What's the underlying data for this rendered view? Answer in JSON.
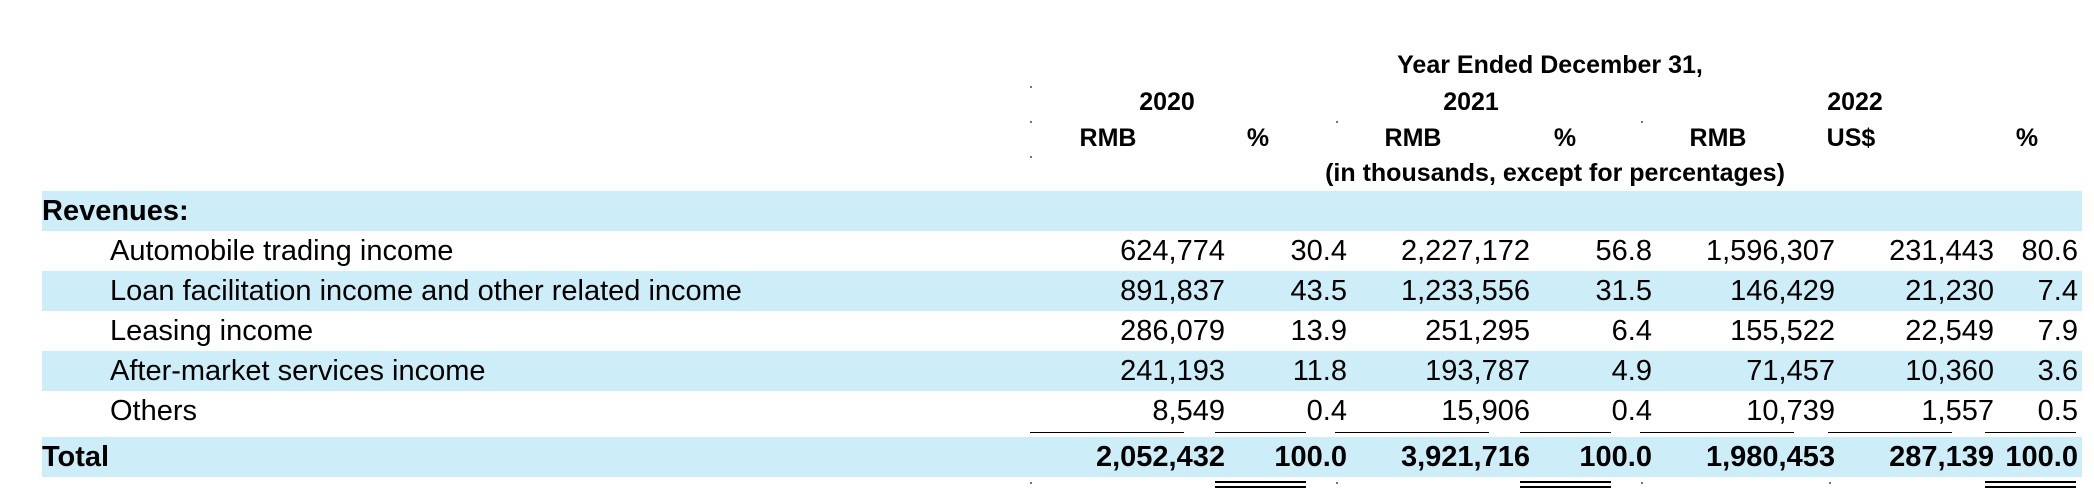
{
  "table": {
    "header": {
      "period_title": "Year Ended December 31,",
      "years": [
        "2020",
        "2021",
        "2022"
      ],
      "columns": [
        "RMB",
        "%",
        "RMB",
        "%",
        "RMB",
        "US$",
        "%"
      ],
      "units_note": "(in thousands, except for percentages)"
    },
    "section_label": "Revenues:",
    "rows": [
      {
        "label": "Automobile trading income",
        "values": [
          "624,774",
          "30.4",
          "2,227,172",
          "56.8",
          "1,596,307",
          "231,443",
          "80.6"
        ]
      },
      {
        "label": "Loan facilitation income and other related income",
        "values": [
          "891,837",
          "43.5",
          "1,233,556",
          "31.5",
          "146,429",
          "21,230",
          "7.4"
        ]
      },
      {
        "label": "Leasing income",
        "values": [
          "286,079",
          "13.9",
          "251,295",
          "6.4",
          "155,522",
          "22,549",
          "7.9"
        ]
      },
      {
        "label": "After-market services income",
        "values": [
          "241,193",
          "11.8",
          "193,787",
          "4.9",
          "71,457",
          "10,360",
          "3.6"
        ]
      },
      {
        "label": "Others",
        "values": [
          "8,549",
          "0.4",
          "15,906",
          "0.4",
          "10,739",
          "1,557",
          "0.5"
        ]
      }
    ],
    "total": {
      "label": "Total",
      "values": [
        "2,052,432",
        "100.0",
        "3,921,716",
        "100.0",
        "1,980,453",
        "287,139",
        "100.0"
      ]
    }
  }
}
